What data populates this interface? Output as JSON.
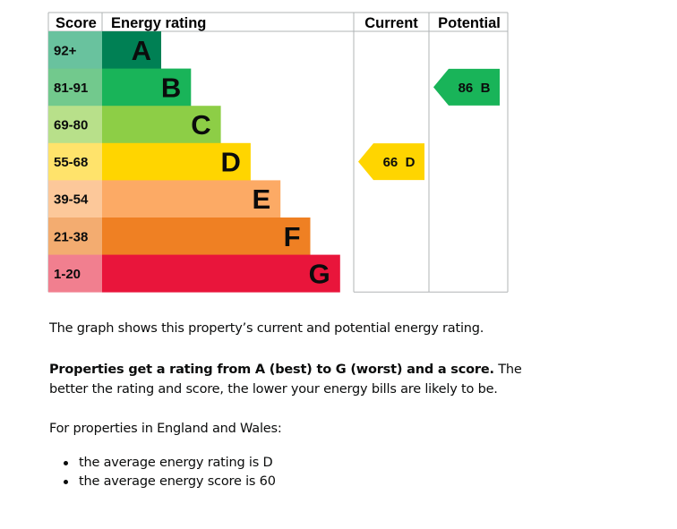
{
  "chart_data": {
    "type": "table",
    "headers": {
      "score": "Score",
      "rating": "Energy rating",
      "current": "Current",
      "potential": "Potential"
    },
    "bands": [
      {
        "range": "92+",
        "letter": "A",
        "color": "#008054",
        "score_color": "#69c29e"
      },
      {
        "range": "81-91",
        "letter": "B",
        "color": "#19b459",
        "score_color": "#72c98d"
      },
      {
        "range": "69-80",
        "letter": "C",
        "color": "#8dce46",
        "score_color": "#b8e08a"
      },
      {
        "range": "55-68",
        "letter": "D",
        "color": "#ffd500",
        "score_color": "#ffe36b"
      },
      {
        "range": "39-54",
        "letter": "E",
        "color": "#fcaa65",
        "score_color": "#fcc89a"
      },
      {
        "range": "21-38",
        "letter": "F",
        "color": "#ef8023",
        "score_color": "#f3ac70"
      },
      {
        "range": "1-20",
        "letter": "G",
        "color": "#e9153b",
        "score_color": "#f17f8f"
      }
    ],
    "current": {
      "score": 66,
      "letter": "D",
      "label": "66  D",
      "color": "#ffd500"
    },
    "potential": {
      "score": 86,
      "letter": "B",
      "label": "86  B",
      "color": "#19b459"
    }
  },
  "text": {
    "p1": "The graph shows this property’s current and potential energy rating.",
    "p2_bold": "Properties get a rating from A (best) to G (worst) and a score.",
    "p2_rest": " The better the rating and score, the lower your energy bills are likely to be.",
    "p3": "For properties in England and Wales:",
    "bullets": [
      "the average energy rating is D",
      "the average energy score is 60"
    ]
  }
}
